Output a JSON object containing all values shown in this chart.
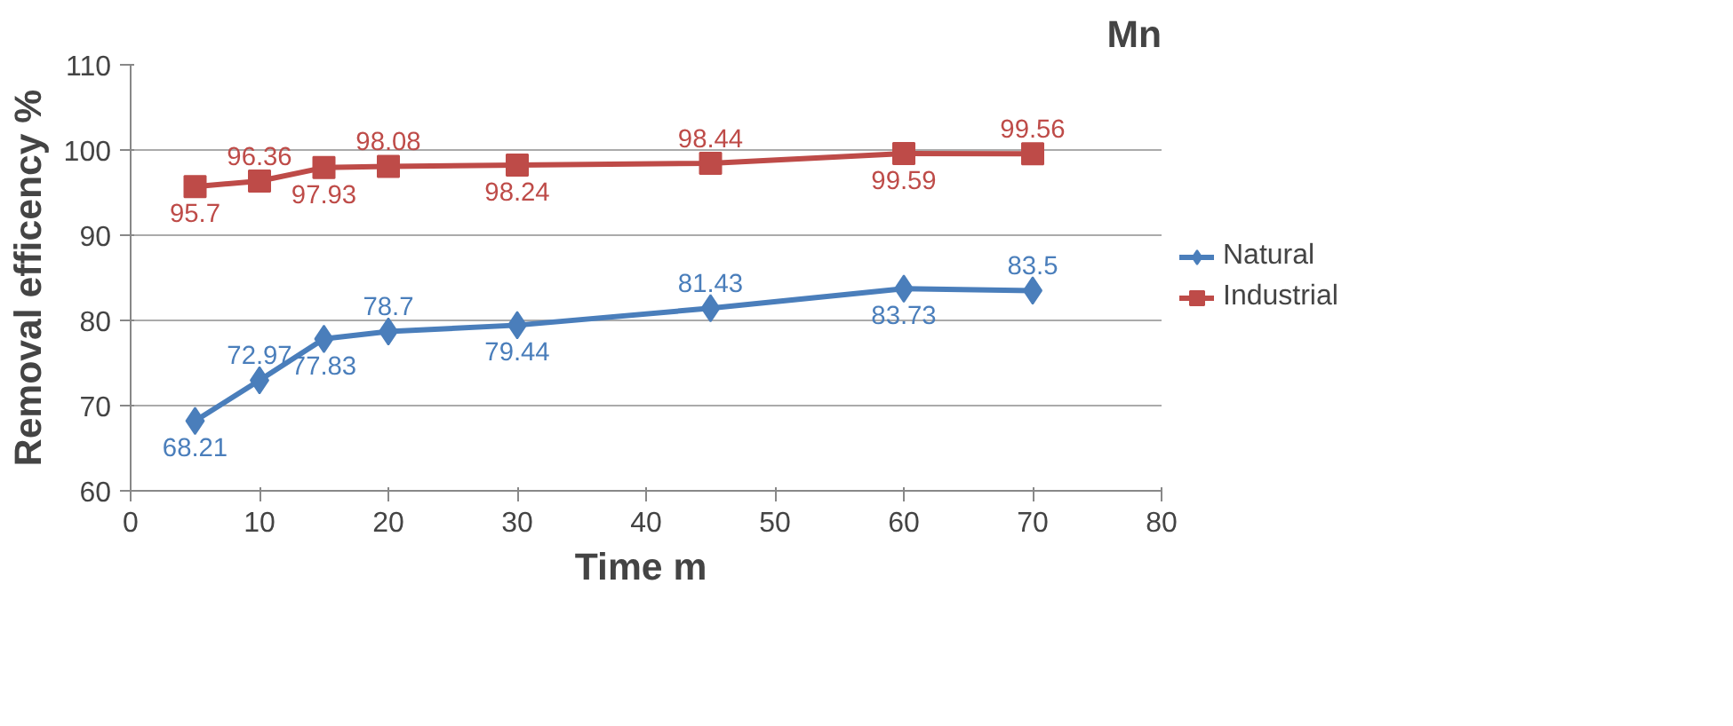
{
  "chart_data": {
    "type": "line",
    "title": "Mn",
    "xlabel": "Time  m",
    "ylabel": "Removal efficency %",
    "x": [
      5,
      10,
      15,
      20,
      30,
      45,
      60,
      70
    ],
    "series": [
      {
        "name": "Natural",
        "color": "#4a7ebb",
        "marker": "diamond",
        "values": [
          68.21,
          72.97,
          77.83,
          78.7,
          79.44,
          81.43,
          83.73,
          83.5
        ]
      },
      {
        "name": "Industrial",
        "color": "#be4b48",
        "marker": "square",
        "values": [
          95.7,
          96.36,
          97.93,
          98.08,
          98.24,
          98.44,
          99.59,
          99.56
        ]
      }
    ],
    "xlim": [
      0,
      80
    ],
    "xticks": [
      0,
      10,
      20,
      30,
      40,
      50,
      60,
      70,
      80
    ],
    "ylim": [
      60,
      110
    ],
    "yticks": [
      60,
      70,
      80,
      90,
      100,
      110
    ],
    "grid": "y",
    "legend": "right",
    "data_labels": true
  }
}
